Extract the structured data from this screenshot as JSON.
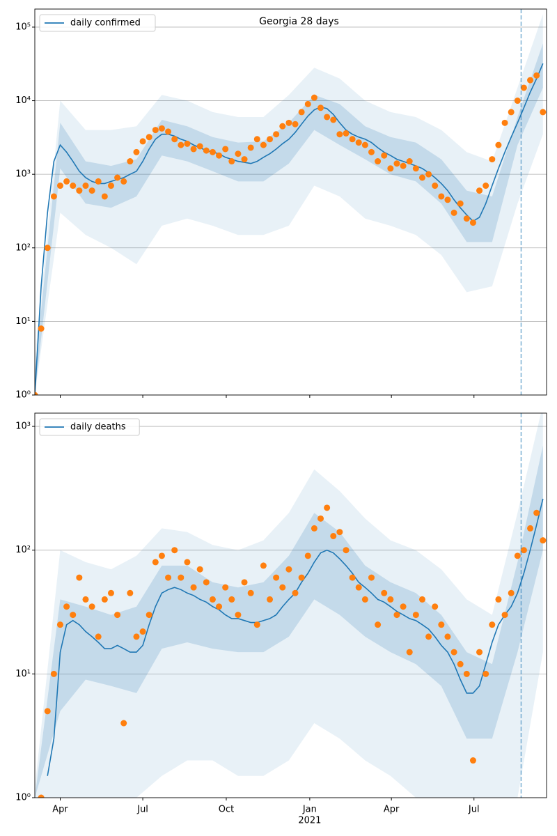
{
  "chart_data": [
    {
      "type": "line",
      "title": "Georgia 28 days",
      "log_y": true,
      "grid": "y",
      "legend": "upper left",
      "xlim": [
        0,
        564
      ],
      "xticks": [
        28,
        119,
        211,
        303,
        393,
        484
      ],
      "vline": {
        "value": 536,
        "color": "#1f77b4"
      },
      "ylim": [
        1,
        176000
      ],
      "yticks": [
        {
          "value": 1,
          "label": "10⁰"
        },
        {
          "value": 10,
          "label": "10¹"
        },
        {
          "value": 100,
          "label": "10²"
        },
        {
          "value": 1000,
          "label": "10³"
        },
        {
          "value": 10000,
          "label": "10⁴"
        },
        {
          "value": 100000,
          "label": "10⁵"
        }
      ],
      "x": [
        0,
        7,
        14,
        21,
        28,
        35,
        42,
        49,
        56,
        63,
        70,
        77,
        84,
        91,
        98,
        105,
        112,
        119,
        126,
        133,
        140,
        147,
        154,
        161,
        168,
        175,
        182,
        189,
        196,
        203,
        210,
        217,
        224,
        231,
        238,
        245,
        252,
        259,
        266,
        273,
        280,
        287,
        294,
        301,
        308,
        315,
        322,
        329,
        336,
        343,
        350,
        357,
        364,
        371,
        378,
        385,
        392,
        399,
        406,
        413,
        420,
        427,
        434,
        441,
        448,
        455,
        462,
        469,
        476,
        483,
        490,
        497,
        504,
        511,
        518,
        525,
        532,
        539,
        546,
        553,
        560
      ],
      "series": [
        {
          "name": "daily confirmed",
          "color": "#1f77b4",
          "values": [
            1,
            30,
            300,
            1500,
            2500,
            2000,
            1500,
            1100,
            900,
            800,
            750,
            750,
            800,
            850,
            900,
            1000,
            1100,
            1500,
            2200,
            3000,
            3500,
            3500,
            3300,
            3000,
            2800,
            2500,
            2300,
            2100,
            2000,
            1900,
            1700,
            1600,
            1500,
            1450,
            1400,
            1500,
            1700,
            1900,
            2200,
            2600,
            3000,
            3700,
            4800,
            6200,
            7500,
            8200,
            7800,
            6500,
            5000,
            4000,
            3500,
            3200,
            3000,
            2700,
            2300,
            2000,
            1800,
            1600,
            1500,
            1400,
            1300,
            1200,
            1050,
            900,
            750,
            600,
            450,
            350,
            280,
            230,
            260,
            400,
            700,
            1200,
            2000,
            3200,
            5000,
            8000,
            13000,
            20000,
            32000
          ]
        }
      ],
      "scatter": {
        "color": "#ff7f0e",
        "values": [
          1,
          8,
          100,
          500,
          700,
          800,
          700,
          600,
          700,
          600,
          800,
          500,
          700,
          900,
          800,
          1500,
          2000,
          2800,
          3200,
          4000,
          4200,
          3800,
          3000,
          2500,
          2600,
          2200,
          2400,
          2100,
          2000,
          1800,
          2200,
          1500,
          1900,
          1600,
          2300,
          3000,
          2500,
          3000,
          3500,
          4500,
          5000,
          4800,
          7000,
          9000,
          11000,
          8000,
          6000,
          5500,
          3500,
          3600,
          3000,
          2700,
          2500,
          2000,
          1500,
          1800,
          1200,
          1400,
          1300,
          1500,
          1200,
          900,
          1000,
          700,
          500,
          450,
          300,
          400,
          250,
          220,
          600,
          700,
          1600,
          2500,
          5000,
          7000,
          10000,
          15000,
          19000,
          22000,
          7000
        ]
      },
      "bands": [
        {
          "color": "#1f77b4",
          "opacity": 0.1,
          "x": [
            0,
            28,
            56,
            84,
            112,
            140,
            168,
            196,
            224,
            252,
            280,
            308,
            336,
            364,
            392,
            420,
            448,
            476,
            504,
            532,
            560
          ],
          "low": [
            1,
            300,
            150,
            100,
            60,
            200,
            250,
            200,
            150,
            150,
            200,
            700,
            500,
            250,
            200,
            150,
            80,
            25,
            30,
            400,
            3500
          ],
          "high": [
            3,
            10000,
            4000,
            4000,
            4500,
            12000,
            10000,
            7000,
            6000,
            6000,
            12000,
            28000,
            20000,
            10000,
            7000,
            6000,
            4000,
            2000,
            1500,
            15000,
            150000
          ]
        },
        {
          "color": "#1f77b4",
          "opacity": 0.18,
          "x": [
            0,
            28,
            56,
            84,
            112,
            140,
            168,
            196,
            224,
            252,
            280,
            308,
            336,
            364,
            392,
            420,
            448,
            476,
            504,
            532,
            560
          ],
          "low": [
            1,
            1200,
            400,
            350,
            500,
            1800,
            1500,
            1100,
            800,
            800,
            1400,
            4000,
            2500,
            1600,
            1000,
            800,
            400,
            120,
            120,
            2500,
            15000
          ],
          "high": [
            2,
            5000,
            1500,
            1300,
            1600,
            5500,
            4500,
            3200,
            2700,
            2800,
            5000,
            12000,
            9000,
            4500,
            3200,
            2700,
            1600,
            600,
            500,
            6000,
            60000
          ]
        }
      ]
    },
    {
      "type": "line",
      "log_y": true,
      "grid": "y",
      "legend": "upper left",
      "xlim": [
        0,
        564
      ],
      "xticks": [
        {
          "value": 28,
          "label": "Apr"
        },
        {
          "value": 119,
          "label": "Jul"
        },
        {
          "value": 211,
          "label": "Oct"
        },
        {
          "value": 303,
          "label": "Jan"
        },
        {
          "value": 393,
          "label": "Apr"
        },
        {
          "value": 484,
          "label": "Jul"
        }
      ],
      "year_label": {
        "value": 303,
        "label": "2021"
      },
      "vline": {
        "value": 536,
        "color": "#1f77b4"
      },
      "ylim": [
        1,
        1280
      ],
      "yticks": [
        {
          "value": 1,
          "label": "10⁰"
        },
        {
          "value": 10,
          "label": "10¹"
        },
        {
          "value": 100,
          "label": "10²"
        },
        {
          "value": 1000,
          "label": "10³"
        }
      ],
      "x": [
        0,
        7,
        14,
        21,
        28,
        35,
        42,
        49,
        56,
        63,
        70,
        77,
        84,
        91,
        98,
        105,
        112,
        119,
        126,
        133,
        140,
        147,
        154,
        161,
        168,
        175,
        182,
        189,
        196,
        203,
        210,
        217,
        224,
        231,
        238,
        245,
        252,
        259,
        266,
        273,
        280,
        287,
        294,
        301,
        308,
        315,
        322,
        329,
        336,
        343,
        350,
        357,
        364,
        371,
        378,
        385,
        392,
        399,
        406,
        413,
        420,
        427,
        434,
        441,
        448,
        455,
        462,
        469,
        476,
        483,
        490,
        497,
        504,
        511,
        518,
        525,
        532,
        539,
        546,
        553,
        560
      ],
      "series": [
        {
          "name": "daily deaths",
          "color": "#1f77b4",
          "values": [
            null,
            null,
            1.5,
            3,
            15,
            25,
            27,
            25,
            22,
            20,
            18,
            16,
            16,
            17,
            16,
            15,
            15,
            17,
            25,
            35,
            45,
            48,
            50,
            48,
            45,
            43,
            40,
            38,
            35,
            33,
            30,
            28,
            28,
            27,
            26,
            26,
            27,
            28,
            30,
            35,
            40,
            45,
            55,
            65,
            80,
            95,
            100,
            95,
            85,
            75,
            65,
            55,
            50,
            45,
            40,
            38,
            35,
            32,
            30,
            28,
            27,
            25,
            23,
            20,
            17,
            15,
            12,
            9,
            7,
            7,
            8,
            12,
            18,
            25,
            30,
            35,
            45,
            65,
            100,
            160,
            260
          ]
        }
      ],
      "scatter": {
        "color": "#ff7f0e",
        "values": [
          null,
          1,
          5,
          10,
          25,
          35,
          30,
          60,
          40,
          35,
          20,
          40,
          45,
          30,
          4,
          45,
          20,
          22,
          30,
          80,
          90,
          60,
          100,
          60,
          80,
          50,
          70,
          55,
          40,
          35,
          50,
          40,
          30,
          55,
          45,
          25,
          75,
          40,
          60,
          50,
          70,
          45,
          60,
          90,
          150,
          180,
          220,
          130,
          140,
          100,
          60,
          50,
          40,
          60,
          25,
          45,
          40,
          30,
          35,
          15,
          30,
          40,
          20,
          35,
          25,
          20,
          15,
          12,
          10,
          2,
          15,
          10,
          25,
          40,
          30,
          45,
          90,
          100,
          150,
          200,
          120
        ]
      },
      "bands": [
        {
          "color": "#1f77b4",
          "opacity": 0.1,
          "x": [
            0,
            28,
            56,
            84,
            112,
            140,
            168,
            196,
            224,
            252,
            280,
            308,
            336,
            364,
            392,
            420,
            448,
            476,
            504,
            532,
            560
          ],
          "low": [
            1,
            1,
            1,
            1,
            1,
            1.5,
            2,
            2,
            1.5,
            1.5,
            2,
            4,
            3,
            2,
            1.5,
            1,
            1,
            1,
            1,
            1,
            15
          ],
          "high": [
            1.2,
            100,
            80,
            70,
            90,
            150,
            140,
            110,
            100,
            120,
            200,
            450,
            300,
            180,
            120,
            100,
            70,
            40,
            30,
            200,
            1500
          ]
        },
        {
          "color": "#1f77b4",
          "opacity": 0.18,
          "x": [
            0,
            28,
            56,
            84,
            112,
            140,
            168,
            196,
            224,
            252,
            280,
            308,
            336,
            364,
            392,
            420,
            448,
            476,
            504,
            532,
            560
          ],
          "low": [
            1,
            5,
            9,
            8,
            7,
            16,
            18,
            16,
            15,
            15,
            20,
            40,
            30,
            20,
            15,
            12,
            8,
            3,
            3,
            15,
            100
          ],
          "high": [
            1,
            40,
            35,
            30,
            35,
            75,
            75,
            55,
            50,
            55,
            90,
            200,
            140,
            75,
            55,
            45,
            30,
            15,
            12,
            80,
            700
          ]
        }
      ]
    }
  ]
}
